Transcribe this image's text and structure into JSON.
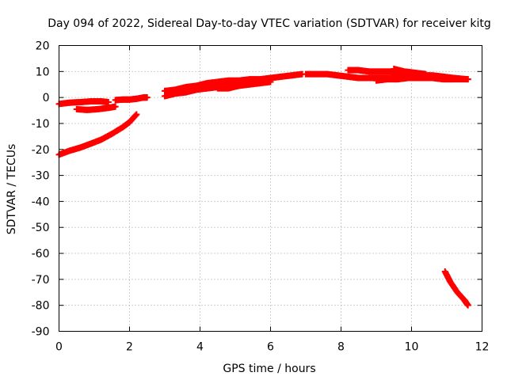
{
  "chart_data": {
    "type": "scatter",
    "title": "Day 094 of 2022, Sidereal Day-to-day VTEC variation (SDTVAR) for receiver kitg",
    "xlabel": "GPS time / hours",
    "ylabel": "SDTVAR / TECUs",
    "xlim": [
      0,
      12
    ],
    "ylim": [
      -90,
      20
    ],
    "xticks": [
      0,
      2,
      4,
      6,
      8,
      10,
      12
    ],
    "yticks": [
      -90,
      -80,
      -70,
      -60,
      -50,
      -40,
      -30,
      -20,
      -10,
      0,
      10,
      20
    ],
    "grid": true,
    "marker": "plus",
    "series": [
      {
        "name": "SDTVAR",
        "color": "#ff0000",
        "segments": [
          {
            "x": [
              0.0,
              0.3,
              0.6,
              0.9,
              1.2,
              1.4
            ],
            "y": [
              -2.5,
              -2.0,
              -1.8,
              -1.5,
              -1.5,
              -1.8
            ]
          },
          {
            "x": [
              0.5,
              0.8,
              1.1,
              1.4,
              1.6
            ],
            "y": [
              -4.5,
              -4.8,
              -4.5,
              -4.0,
              -3.5
            ]
          },
          {
            "x": [
              1.6,
              1.8,
              2.0,
              2.2,
              2.4,
              2.5
            ],
            "y": [
              -1.0,
              -0.8,
              -0.8,
              -0.5,
              0.0,
              0.0
            ]
          },
          {
            "x": [
              0.0,
              0.3,
              0.6,
              0.9,
              1.2,
              1.5,
              1.8,
              2.0,
              2.2
            ],
            "y": [
              -22,
              -20.5,
              -19.3,
              -17.8,
              -16.2,
              -14.0,
              -11.5,
              -9.5,
              -6.5
            ]
          },
          {
            "x": [
              3.0,
              3.3,
              3.6,
              3.9,
              4.2,
              4.5,
              4.8,
              5.1,
              5.4,
              5.7,
              6.0,
              6.3,
              6.6,
              6.9
            ],
            "y": [
              2.5,
              3.0,
              4.0,
              4.5,
              5.5,
              6.0,
              6.5,
              6.5,
              7.0,
              7.0,
              7.5,
              8.0,
              8.5,
              9.0
            ]
          },
          {
            "x": [
              3.0,
              3.3,
              3.6,
              3.9,
              4.2,
              4.5,
              4.8,
              5.1,
              5.4,
              5.7,
              6.0
            ],
            "y": [
              0.5,
              1.5,
              2.0,
              3.0,
              3.5,
              4.0,
              4.5,
              4.5,
              5.0,
              5.5,
              6.0
            ]
          },
          {
            "x": [
              4.5,
              4.8,
              5.1,
              5.4,
              5.7
            ],
            "y": [
              3.5,
              3.5,
              4.5,
              5.5,
              6.0
            ]
          },
          {
            "x": [
              7.0,
              7.3,
              7.6,
              7.9,
              8.2,
              8.5,
              8.8,
              9.1,
              9.4,
              9.7,
              10.0,
              10.3,
              10.6,
              10.9,
              11.2,
              11.6
            ],
            "y": [
              9.0,
              9.0,
              9.0,
              8.5,
              8.0,
              7.5,
              7.5,
              7.5,
              7.5,
              7.5,
              7.5,
              7.5,
              7.5,
              7.0,
              7.0,
              7.0
            ]
          },
          {
            "x": [
              8.2,
              8.5,
              8.8,
              9.1,
              9.4,
              9.7,
              10.0,
              10.3,
              10.6,
              10.9,
              11.2,
              11.6
            ],
            "y": [
              10.5,
              10.5,
              10.0,
              10.0,
              10.0,
              9.5,
              9.0,
              8.5,
              8.5,
              8.0,
              7.5,
              7.0
            ]
          },
          {
            "x": [
              9.0,
              9.3,
              9.6,
              9.9,
              10.2,
              10.5
            ],
            "y": [
              6.5,
              7.0,
              7.0,
              7.5,
              8.0,
              8.5
            ]
          },
          {
            "x": [
              9.5,
              9.8,
              10.1,
              10.4
            ],
            "y": [
              11.0,
              10.0,
              9.5,
              9.0
            ]
          },
          {
            "x": [
              10.95,
              11.1,
              11.3,
              11.5,
              11.6
            ],
            "y": [
              -67,
              -71,
              -75,
              -78,
              -80
            ]
          }
        ]
      }
    ]
  }
}
